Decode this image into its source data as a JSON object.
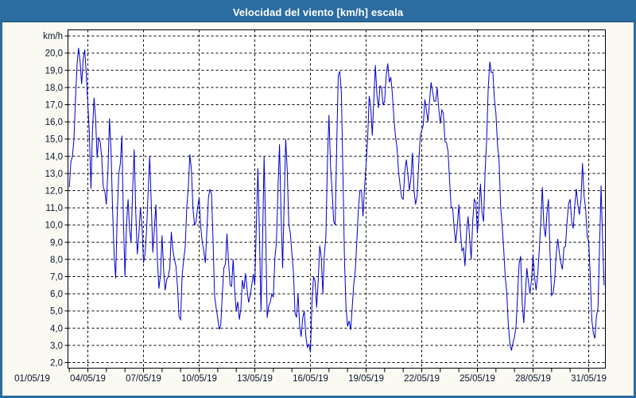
{
  "window": {
    "title": "Velocidad del viento [km/h] escala"
  },
  "colors": {
    "titlebar_bg": "#2B6DA0",
    "titlebar_text": "#FFFFFF",
    "border": "#2B6DA0",
    "page_bg": "#FAFAF2",
    "plot_bg": "#FFFFFF",
    "grid": "#000000",
    "axis_text": "#0A1430",
    "line": "#0000CD"
  },
  "chart_data": {
    "type": "line",
    "title": "Velocidad del viento [km/h] escala",
    "xlabel": "",
    "ylabel": "km/h",
    "ylim": [
      2,
      21
    ],
    "grid": "dashed",
    "legend": "none",
    "ytick_labels": [
      "20,0",
      "19,0",
      "18,0",
      "17,0",
      "16,0",
      "15,0",
      "14,0",
      "13,0",
      "12,0",
      "11,0",
      "10,0",
      "9,0",
      "8,0",
      "7,0",
      "6,0",
      "5,0",
      "4,0",
      "3,0",
      "2,0"
    ],
    "xtick_labels": [
      "01/05/19",
      "04/05/19",
      "07/05/19",
      "10/05/19",
      "13/05/19",
      "16/05/19",
      "19/05/19",
      "22/05/19",
      "25/05/19",
      "28/05/19",
      "31/05/19"
    ],
    "series": [
      {
        "start": "03/05/19 00:00",
        "step_hours": 4,
        "unit": "km/h",
        "values": [
          12.2,
          14.0,
          17.3,
          20.3,
          18.2,
          20.2,
          17.0,
          12.1,
          17.4,
          13.9,
          14.8,
          12.2,
          11.2,
          16.2,
          10.9,
          6.9,
          13.0,
          15.2,
          7.0,
          11.5,
          9.0,
          14.4,
          8.3,
          11.0,
          7.8,
          9.7,
          14.0,
          8.4,
          11.2,
          6.3,
          9.4,
          6.2,
          7.0,
          9.6,
          8.0,
          6.4,
          4.5,
          8.0,
          11.0,
          14.1,
          11.0,
          10.2,
          11.6,
          9.0,
          7.8,
          11.6,
          11.8,
          5.9,
          4.6,
          4.2,
          7.5,
          9.5,
          6.5,
          8.0,
          5.0,
          4.5,
          6.8,
          7.2,
          5.5,
          6.5,
          6.5,
          13.3,
          5.0,
          14.0,
          4.6,
          5.5,
          5.8,
          9.0,
          14.7,
          7.5,
          15.0,
          10.0,
          8.3,
          4.9,
          6.0,
          3.5,
          5.0,
          2.9,
          2.6,
          7.0,
          5.2,
          8.8,
          6.0,
          9.3,
          16.4,
          12.0,
          10.0,
          18.7,
          17.7,
          8.0,
          4.1,
          3.9,
          6.5,
          9.0,
          12.0,
          10.5,
          13.5,
          17.5,
          15.2,
          19.3,
          16.8,
          18.0,
          17.2,
          19.4,
          18.6,
          16.2,
          14.5,
          12.3,
          11.5,
          13.8,
          12.0,
          14.2,
          11.2,
          13.5,
          15.5,
          17.3,
          16.0,
          18.3,
          17.2,
          18.0,
          15.9,
          16.5,
          14.8,
          12.6,
          11.0,
          9.0,
          11.2,
          8.5,
          7.6,
          10.5,
          8.0,
          11.5,
          9.5,
          12.4,
          10.2,
          15.0,
          19.5,
          18.9,
          16.5,
          13.8,
          10.0,
          7.0,
          4.2,
          2.7,
          3.5,
          6.0,
          8.2,
          4.3,
          7.5,
          6.0,
          8.3,
          6.2,
          8.5,
          12.2,
          9.3,
          11.5,
          5.9,
          6.8,
          9.2,
          7.8,
          8.7,
          10.2,
          11.5,
          9.8,
          12.1,
          10.6,
          13.6,
          11.0,
          9.0,
          4.5,
          3.4,
          5.2,
          12.3,
          6.5
        ]
      }
    ]
  }
}
